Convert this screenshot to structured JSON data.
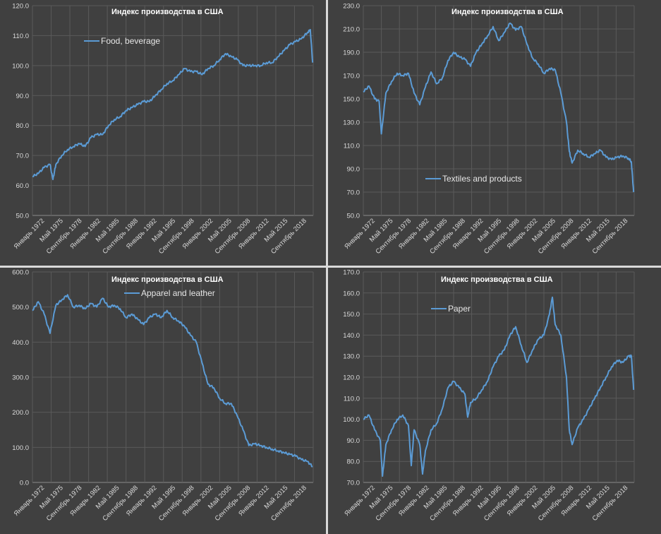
{
  "chart_data": [
    {
      "type": "line",
      "title": "Индекс производства в США",
      "xlabel": "",
      "ylabel": "",
      "ylim": [
        50,
        120
      ],
      "y_ticks": [
        "50.0",
        "60.0",
        "70.0",
        "80.0",
        "90.0",
        "100.0",
        "110.0",
        "120.0"
      ],
      "x_ticks": [
        "Январь 1972",
        "Май 1975",
        "Сентябрь 1978",
        "Январь 1982",
        "Май 1985",
        "Сентябрь 1988",
        "Январь 1992",
        "Май 1995",
        "Сентябрь 1998",
        "Январь 2002",
        "Май 2005",
        "Сентябрь 2008",
        "Январь 2012",
        "Май 2015",
        "Сентябрь 2018"
      ],
      "x_range": [
        1972.0,
        2020.0
      ],
      "grid": true,
      "legend": "top-left",
      "series": [
        {
          "name": "Food, beverage",
          "color": "#5b9bd5",
          "x": [
            1972,
            1973,
            1974,
            1975,
            1975.5,
            1976,
            1977,
            1978,
            1979,
            1980,
            1981,
            1982,
            1983,
            1984,
            1985,
            1986,
            1987,
            1988,
            1989,
            1990,
            1991,
            1992,
            1993,
            1994,
            1995,
            1996,
            1997,
            1998,
            1999,
            2000,
            2001,
            2002,
            2003,
            2004,
            2005,
            2006,
            2007,
            2008,
            2009,
            2010,
            2011,
            2012,
            2013,
            2014,
            2015,
            2016,
            2017,
            2018,
            2019,
            2019.5,
            2019.9
          ],
          "values": [
            63,
            64,
            66,
            67,
            62,
            67,
            70,
            72,
            73,
            74,
            73,
            76,
            77,
            77,
            80,
            82,
            83,
            85,
            86,
            87,
            88,
            88,
            90,
            92,
            94,
            95,
            97,
            99,
            98,
            98,
            97,
            99,
            100,
            102,
            104,
            103,
            102,
            100,
            100,
            100,
            100,
            101,
            101,
            103,
            105,
            107,
            108,
            109,
            111,
            112,
            101
          ]
        }
      ]
    },
    {
      "type": "line",
      "title": "Индекс производства в США",
      "xlabel": "",
      "ylabel": "",
      "ylim": [
        50,
        230
      ],
      "y_ticks": [
        "50.0",
        "70.0",
        "90.0",
        "110.0",
        "130.0",
        "150.0",
        "170.0",
        "190.0",
        "210.0",
        "230.0"
      ],
      "x_ticks": [
        "Январь 1972",
        "Май 1975",
        "Сентябрь 1978",
        "Январь 1982",
        "Май 1985",
        "Сентябрь 1988",
        "Январь 1992",
        "Май 1995",
        "Сентябрь 1998",
        "Январь 2002",
        "Май 2005",
        "Сентябрь 2008",
        "Январь 2012",
        "Май 2015",
        "Сентябрь 2018"
      ],
      "x_range": [
        1972.0,
        2020.0
      ],
      "grid": true,
      "legend": "bottom-center",
      "series": [
        {
          "name": "Textiles and products",
          "color": "#5b9bd5",
          "x": [
            1972,
            1973,
            1974,
            1974.8,
            1975.2,
            1976,
            1977,
            1978,
            1979,
            1980,
            1981,
            1982,
            1983,
            1984,
            1985,
            1986,
            1987,
            1988,
            1989,
            1990,
            1991,
            1992,
            1993,
            1994,
            1995,
            1996,
            1997,
            1998,
            1999,
            2000,
            2001,
            2002,
            2003,
            2004,
            2005,
            2006,
            2007,
            2008,
            2008.5,
            2009,
            2010,
            2011,
            2012,
            2013,
            2014,
            2015,
            2016,
            2017,
            2018,
            2019,
            2019.5,
            2019.9
          ],
          "values": [
            156,
            161,
            150,
            148,
            120,
            155,
            165,
            172,
            170,
            172,
            155,
            145,
            160,
            173,
            163,
            168,
            183,
            190,
            186,
            184,
            178,
            190,
            197,
            204,
            212,
            200,
            207,
            215,
            209,
            212,
            197,
            185,
            180,
            172,
            176,
            175,
            155,
            130,
            105,
            95,
            106,
            103,
            100,
            103,
            106,
            100,
            98,
            100,
            101,
            99,
            96,
            70
          ]
        }
      ]
    },
    {
      "type": "line",
      "title": "Индекс производства в США",
      "xlabel": "",
      "ylabel": "",
      "ylim": [
        0,
        600
      ],
      "y_ticks": [
        "0.0",
        "100.0",
        "200.0",
        "300.0",
        "400.0",
        "500.0",
        "600.0"
      ],
      "x_ticks": [
        "Январь 1972",
        "Май 1975",
        "Сентябрь 1978",
        "Январь 1982",
        "Май 1985",
        "Сентябрь 1988",
        "Январь 1992",
        "Май 1995",
        "Сентябрь 1998",
        "Январь 2002",
        "Май 2005",
        "Сентябрь 2008",
        "Январь 2012",
        "Май 2015",
        "Сентябрь 2018"
      ],
      "x_range": [
        1972.0,
        2020.0
      ],
      "grid": true,
      "legend": "top-center",
      "series": [
        {
          "name": "Apparel and leather",
          "color": "#5b9bd5",
          "x": [
            1972,
            1973,
            1974,
            1975,
            1976,
            1977,
            1978,
            1979,
            1980,
            1981,
            1982,
            1983,
            1984,
            1985,
            1986,
            1987,
            1988,
            1989,
            1990,
            1991,
            1992,
            1993,
            1994,
            1995,
            1996,
            1997,
            1998,
            1999,
            2000,
            2001,
            2002,
            2003,
            2004,
            2005,
            2006,
            2007,
            2008,
            2009,
            2010,
            2011,
            2012,
            2013,
            2014,
            2015,
            2016,
            2017,
            2018,
            2019,
            2019.9
          ],
          "values": [
            490,
            515,
            480,
            425,
            505,
            520,
            535,
            500,
            505,
            495,
            510,
            500,
            525,
            500,
            505,
            495,
            470,
            480,
            465,
            450,
            470,
            480,
            470,
            490,
            470,
            460,
            445,
            420,
            400,
            340,
            280,
            270,
            240,
            225,
            225,
            190,
            150,
            105,
            110,
            105,
            100,
            95,
            90,
            85,
            80,
            75,
            65,
            60,
            45
          ]
        }
      ]
    },
    {
      "type": "line",
      "title": "Индекс производства в США",
      "xlabel": "",
      "ylabel": "",
      "ylim": [
        70,
        170
      ],
      "y_ticks": [
        "70.0",
        "80.0",
        "90.0",
        "100.0",
        "110.0",
        "120.0",
        "130.0",
        "140.0",
        "150.0",
        "160.0",
        "170.0"
      ],
      "x_ticks": [
        "Январь 1972",
        "Май 1975",
        "Сентябрь 1978",
        "Январь 1982",
        "Май 1985",
        "Сентябрь 1988",
        "Январь 1992",
        "Май 1995",
        "Сентябрь 1998",
        "Январь 2002",
        "Май 2005",
        "Сентябрь 2008",
        "Январь 2012",
        "Май 2015",
        "Сентябрь 2018"
      ],
      "x_range": [
        1972.0,
        2020.0
      ],
      "grid": true,
      "legend": "top-left",
      "series": [
        {
          "name": "Paper",
          "color": "#5b9bd5",
          "x": [
            1972,
            1973,
            1974,
            1975,
            1975.4,
            1976,
            1977,
            1978,
            1979,
            1980,
            1980.5,
            1981,
            1982,
            1982.5,
            1983,
            1984,
            1985,
            1986,
            1987,
            1988,
            1989,
            1990,
            1990.5,
            1991,
            1992,
            1993,
            1994,
            1995,
            1996,
            1997,
            1998,
            1999,
            2000,
            2001,
            2002,
            2003,
            2004,
            2005,
            2005.5,
            2006,
            2007,
            2008,
            2008.5,
            2009,
            2010,
            2011,
            2012,
            2013,
            2014,
            2015,
            2016,
            2017,
            2018,
            2019,
            2019.5,
            2019.9
          ],
          "values": [
            100,
            102,
            95,
            90,
            73,
            88,
            95,
            100,
            102,
            97,
            78,
            95,
            88,
            74,
            85,
            95,
            98,
            105,
            115,
            118,
            115,
            112,
            101,
            108,
            110,
            114,
            118,
            125,
            130,
            133,
            140,
            144,
            135,
            127,
            133,
            138,
            140,
            150,
            158,
            145,
            140,
            120,
            95,
            88,
            96,
            100,
            105,
            110,
            115,
            120,
            125,
            128,
            127,
            130,
            130,
            114
          ]
        }
      ]
    }
  ]
}
